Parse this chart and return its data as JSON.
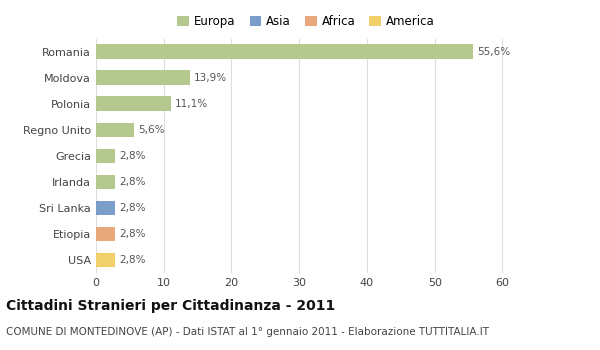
{
  "countries": [
    "Romania",
    "Moldova",
    "Polonia",
    "Regno Unito",
    "Grecia",
    "Irlanda",
    "Sri Lanka",
    "Etiopia",
    "USA"
  ],
  "values": [
    55.6,
    13.9,
    11.1,
    5.6,
    2.8,
    2.8,
    2.8,
    2.8,
    2.8
  ],
  "labels": [
    "55,6%",
    "13,9%",
    "11,1%",
    "5,6%",
    "2,8%",
    "2,8%",
    "2,8%",
    "2,8%",
    "2,8%"
  ],
  "colors": [
    "#b5c98e",
    "#b5c98e",
    "#b5c98e",
    "#b5c98e",
    "#b5c98e",
    "#b5c98e",
    "#7b9dc9",
    "#e8a87c",
    "#f0d06a"
  ],
  "categories": [
    "Europa",
    "Asia",
    "Africa",
    "America"
  ],
  "legend_colors": [
    "#b5c98e",
    "#7b9dc9",
    "#e8a87c",
    "#f0d06a"
  ],
  "xlim": [
    0,
    62
  ],
  "xticks": [
    0,
    10,
    20,
    30,
    40,
    50,
    60
  ],
  "title": "Cittadini Stranieri per Cittadinanza - 2011",
  "subtitle": "COMUNE DI MONTEDINOVE (AP) - Dati ISTAT al 1° gennaio 2011 - Elaborazione TUTTITALIA.IT",
  "background_color": "#ffffff",
  "grid_color": "#dddddd",
  "bar_height": 0.55,
  "title_fontsize": 10,
  "subtitle_fontsize": 7.5,
  "label_fontsize": 7.5,
  "tick_fontsize": 8,
  "legend_fontsize": 8.5
}
